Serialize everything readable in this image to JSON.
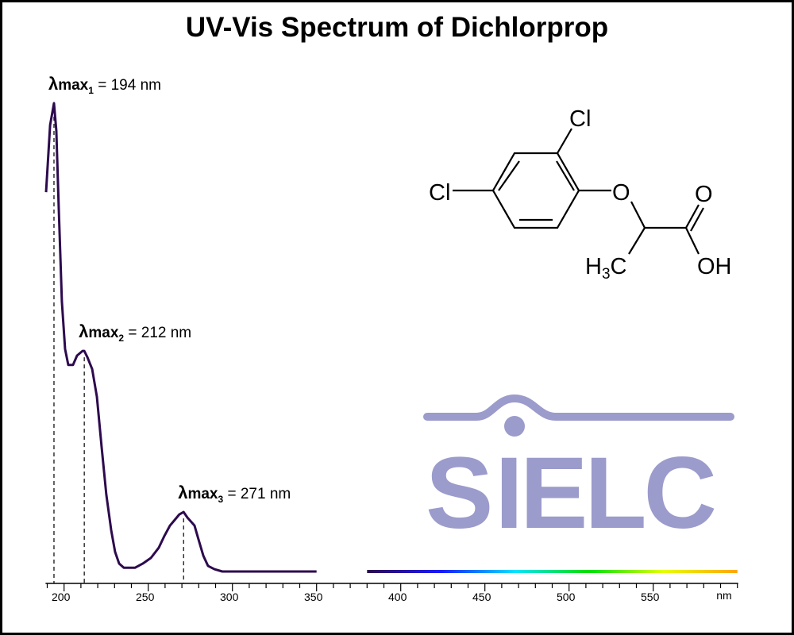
{
  "chart_data": {
    "type": "line",
    "title": "UV-Vis Spectrum of Dichlorprop",
    "xlabel": "nm",
    "ylabel": "",
    "xlim": [
      189,
      600
    ],
    "ylim": [
      0,
      1
    ],
    "xticks": [
      200,
      250,
      300,
      350,
      400,
      450,
      500,
      550
    ],
    "minor_tick_step": 10,
    "grid": false,
    "y_axis_shown": false,
    "line_color": "#2d0a4e",
    "spectrum_gradient_colors": [
      "#2d0a4e",
      "#1a1aff",
      "#00e5ff",
      "#00e000",
      "#e6ff00",
      "#ffa500"
    ],
    "series": [
      {
        "x": [
          189.3,
          191.7,
          194.0,
          195.4,
          196.8,
          198.7,
          200.6,
          202.5,
          205.3,
          207.7,
          211.0,
          212.0,
          213.8,
          216.7,
          219.5,
          222.3,
          225.1,
          228.0,
          230.3,
          232.7,
          235.5,
          242.1,
          246.8,
          251.6,
          256.3,
          259.6,
          262.9,
          265.7,
          268.5,
          271.0,
          273.3,
          277.5,
          279.9,
          282.7,
          285.5,
          289.3,
          294.0,
          350,
          400,
          450,
          500,
          550,
          600
        ],
        "y": [
          0.81,
          0.953,
          1.0,
          0.941,
          0.78,
          0.576,
          0.475,
          0.441,
          0.441,
          0.461,
          0.471,
          0.471,
          0.458,
          0.432,
          0.373,
          0.266,
          0.164,
          0.088,
          0.042,
          0.017,
          0.008,
          0.008,
          0.017,
          0.029,
          0.051,
          0.076,
          0.098,
          0.11,
          0.122,
          0.127,
          0.115,
          0.098,
          0.068,
          0.034,
          0.012,
          0.005,
          0,
          0,
          0,
          0,
          0,
          0,
          0
        ]
      }
    ],
    "annotations": [
      {
        "symbol": "λ",
        "label": "max",
        "sub": "1",
        "text": " = 194 nm",
        "x": 194,
        "y": 1.0
      },
      {
        "symbol": "λ",
        "label": "max",
        "sub": "2",
        "text": " = 212 nm",
        "x": 212,
        "y": 0.471
      },
      {
        "symbol": "λ",
        "label": "max",
        "sub": "3",
        "text": " = 271 nm",
        "x": 271,
        "y": 0.127
      }
    ]
  },
  "molecule": {
    "atoms": {
      "cl_top": "Cl",
      "cl_left": "Cl",
      "o_ether": "O",
      "o_carbonyl": "O",
      "oh": "OH",
      "h3c": "H",
      "h3c_sub": "3",
      "h3c_c": "C"
    }
  },
  "logo": {
    "text": "SIELC",
    "color": "#9b9bcc"
  }
}
